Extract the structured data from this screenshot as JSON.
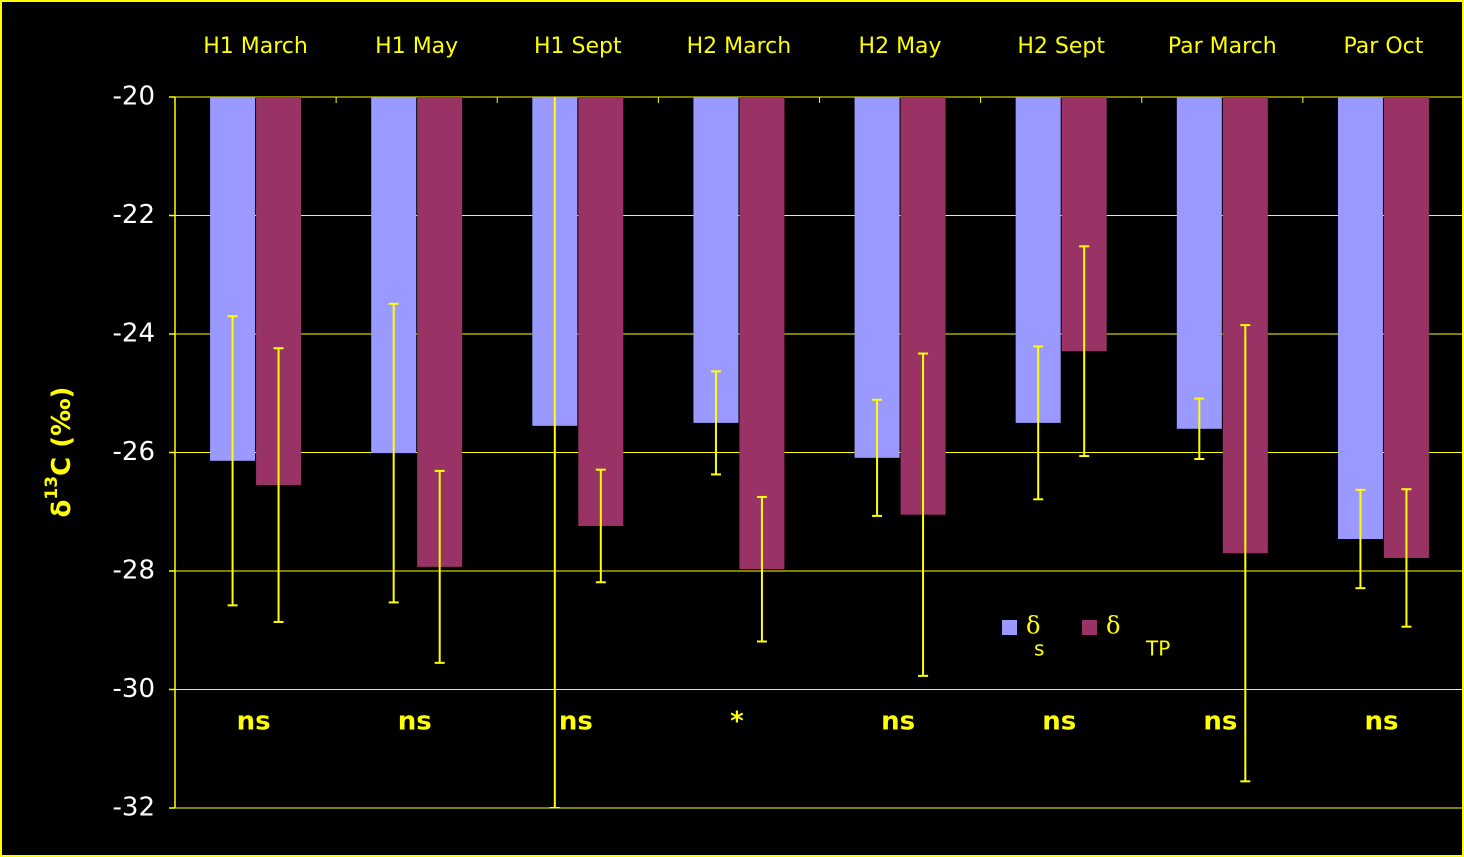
{
  "chart_data": {
    "type": "bar",
    "y_label": {
      "symbol": "δ",
      "superscript": "13",
      "text": "C (‰)"
    },
    "categories": [
      "H1 March",
      "H1 May",
      "H1 Sept",
      "H2 March",
      "H2 May",
      "H2 Sept",
      "Par March",
      "Par Oct"
    ],
    "series": [
      {
        "name": "δ",
        "subscript": "s",
        "color": "#9999ff",
        "values": [
          -26.14,
          -26.01,
          -25.55,
          -25.5,
          -26.09,
          -25.5,
          -25.6,
          -27.46
        ],
        "errors": [
          2.44,
          2.52,
          6.45,
          0.87,
          0.98,
          1.29,
          0.51,
          0.83
        ]
      },
      {
        "name": "δ",
        "subscript": "TP",
        "color": "#993366",
        "values": [
          -26.55,
          -27.93,
          -27.24,
          -27.97,
          -27.05,
          -24.29,
          -27.7,
          -27.78
        ],
        "errors": [
          2.31,
          1.62,
          0.95,
          1.22,
          2.72,
          1.77,
          3.85,
          1.16
        ]
      }
    ],
    "annotations": [
      "ns",
      "ns",
      "ns",
      "*",
      "ns",
      "ns",
      "ns",
      "ns"
    ],
    "ylim": [
      -32,
      -20
    ],
    "yticks": [
      -32,
      -30,
      -28,
      -26,
      -24,
      -22,
      -20
    ],
    "grid": true,
    "error_bar_color": "#ffff00"
  }
}
